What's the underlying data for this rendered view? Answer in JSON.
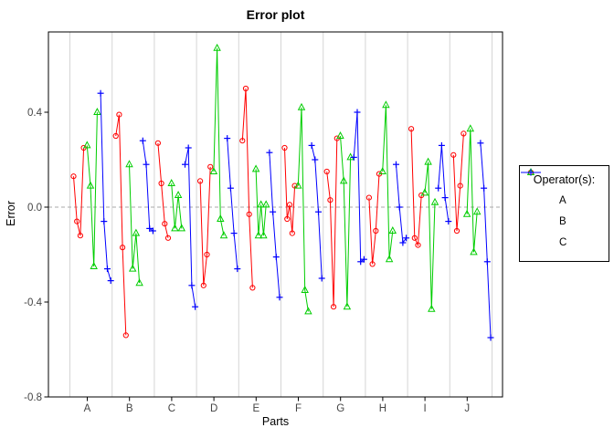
{
  "title": "Error plot",
  "axes": {
    "x_label": "Parts",
    "y_label": "Error",
    "x_ticks": [
      "A",
      "B",
      "C",
      "D",
      "E",
      "F",
      "G",
      "H",
      "I",
      "J"
    ],
    "y_ticks": [
      "0.4",
      "0.0",
      "-0.4",
      "-0.8"
    ],
    "y_tick_values": [
      0.4,
      0.0,
      -0.4,
      -0.8
    ]
  },
  "legend": {
    "title": "Operator(s):",
    "entries": [
      {
        "label": "A",
        "color": "#FF0000",
        "marker": "circle"
      },
      {
        "label": "B",
        "color": "#00CD00",
        "marker": "triangle"
      },
      {
        "label": "C",
        "color": "#0000FF",
        "marker": "plus"
      }
    ]
  },
  "colors": {
    "operator_a": "#FF0000",
    "operator_b": "#00CD00",
    "operator_c": "#0000FF",
    "gridline": "#D5D5D5",
    "zero_line": "#AAAAAA",
    "axis_text": "#444444",
    "panel_border": "#000000"
  },
  "chart_data": {
    "type": "line",
    "title": "Error plot",
    "xlabel": "Parts",
    "ylabel": "Error",
    "ylim": [
      -0.8,
      0.74
    ],
    "y_gridlines": false,
    "x_separator_gridlines": true,
    "zero_line_dashed": true,
    "legend_position": "right",
    "categories": [
      "A",
      "B",
      "C",
      "D",
      "E",
      "F",
      "G",
      "H",
      "I",
      "J"
    ],
    "series": [
      {
        "name": "A",
        "color": "#FF0000",
        "marker": "circle",
        "values": [
          [
            0.13,
            -0.06,
            -0.12,
            0.25
          ],
          [
            0.3,
            0.39,
            -0.17,
            -0.54
          ],
          [
            0.27,
            0.1,
            -0.07,
            -0.13
          ],
          [
            0.11,
            -0.33,
            -0.2,
            0.17
          ],
          [
            0.28,
            0.5,
            -0.03,
            -0.34
          ],
          [
            0.25,
            -0.05,
            0.01,
            -0.11,
            0.09
          ],
          [
            0.15,
            0.03,
            -0.42,
            0.29
          ],
          [
            0.04,
            -0.24,
            -0.1,
            0.14
          ],
          [
            0.33,
            -0.13,
            -0.16,
            0.05
          ],
          [
            0.22,
            -0.1,
            0.09,
            0.31
          ]
        ]
      },
      {
        "name": "B",
        "color": "#00CD00",
        "marker": "triangle",
        "values": [
          [
            0.26,
            0.09,
            -0.25,
            0.4
          ],
          [
            0.18,
            -0.26,
            -0.11,
            -0.32
          ],
          [
            0.1,
            -0.09,
            0.05,
            -0.09
          ],
          [
            0.15,
            0.67,
            -0.05,
            -0.12
          ],
          [
            0.16,
            -0.12,
            0.01,
            -0.12,
            0.01
          ],
          [
            0.09,
            0.42,
            -0.35,
            -0.44
          ],
          [
            0.3,
            0.11,
            -0.42,
            0.21
          ],
          [
            0.15,
            0.43,
            -0.22,
            -0.1
          ],
          [
            0.06,
            0.19,
            -0.43,
            0.02
          ],
          [
            -0.03,
            0.33,
            -0.19,
            -0.02
          ]
        ]
      },
      {
        "name": "C",
        "color": "#0000FF",
        "marker": "plus",
        "values": [
          [
            0.48,
            -0.06,
            -0.26,
            -0.31
          ],
          [
            0.28,
            0.18,
            -0.09,
            -0.1
          ],
          [
            0.18,
            0.25,
            -0.33,
            -0.42
          ],
          [
            0.29,
            0.08,
            -0.11,
            -0.26
          ],
          [
            0.23,
            -0.02,
            -0.21,
            -0.38
          ],
          [
            0.26,
            0.2,
            -0.02,
            -0.3
          ],
          [
            0.21,
            0.4,
            -0.23,
            -0.22
          ],
          [
            0.18,
            0.0,
            -0.15,
            -0.13
          ],
          [
            0.08,
            0.26,
            0.04,
            -0.06
          ],
          [
            0.27,
            0.08,
            -0.23,
            -0.55
          ]
        ]
      }
    ]
  }
}
